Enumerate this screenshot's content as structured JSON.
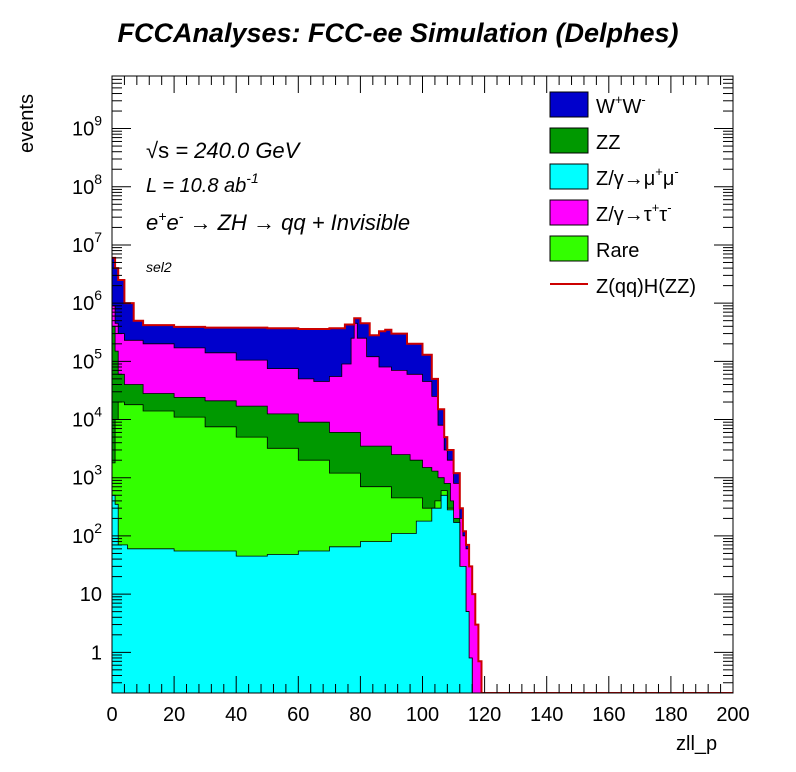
{
  "chart_data": {
    "type": "area",
    "title": "FCCAnalyses: FCC-ee Simulation (Delphes)",
    "xlabel": "zll_p",
    "ylabel": "events",
    "xlim": [
      0,
      200
    ],
    "ylim": [
      0.2,
      8000000000
    ],
    "y_scale": "log",
    "stacked": true,
    "x_ticks": [
      "0",
      "20",
      "40",
      "60",
      "80",
      "100",
      "120",
      "140",
      "160",
      "180",
      "200"
    ],
    "y_ticks": [
      {
        "value": 1,
        "label": "1"
      },
      {
        "value": 10,
        "label": "10"
      },
      {
        "value": 100,
        "label": "10^2"
      },
      {
        "value": 1000,
        "label": "10^3"
      },
      {
        "value": 10000,
        "label": "10^4"
      },
      {
        "value": 100000,
        "label": "10^5"
      },
      {
        "value": 1000000,
        "label": "10^6"
      },
      {
        "value": 10000000,
        "label": "10^7"
      },
      {
        "value": 100000000,
        "label": "10^8"
      },
      {
        "value": 1000000000,
        "label": "10^9"
      }
    ],
    "annotations": {
      "energy_sym": "√s",
      "energy_value": " = 240.0 GeV",
      "lumi_prefix": "L = 10.8 ab",
      "lumi_exp": "-1",
      "process_e1": "e",
      "process_sup1": "+",
      "process_e2": "e",
      "process_sup2": "-",
      "process_rest": " → ZH → qq + Invisible",
      "selection": "sel2"
    },
    "stack_order_bottom_to_top": [
      "Z/γ→μ⁺μ⁻",
      "Rare",
      "ZZ",
      "Z/γ→τ⁺τ⁻",
      "W⁺W⁻"
    ],
    "cumulative_stack": [
      {
        "name": "Z/γ→μ⁺μ⁻",
        "color": "#00ffff",
        "points": [
          [
            0,
            500
          ],
          [
            1,
            350
          ],
          [
            2,
            70
          ],
          [
            5,
            60
          ],
          [
            10,
            60
          ],
          [
            20,
            55
          ],
          [
            30,
            55
          ],
          [
            40,
            45
          ],
          [
            50,
            48
          ],
          [
            60,
            55
          ],
          [
            70,
            65
          ],
          [
            80,
            80
          ],
          [
            90,
            110
          ],
          [
            98,
            180
          ],
          [
            103,
            300
          ],
          [
            106,
            500
          ],
          [
            108,
            280
          ],
          [
            110,
            170
          ],
          [
            112,
            30
          ],
          [
            114,
            5
          ],
          [
            115,
            0.8
          ],
          [
            116,
            0.2
          ]
        ]
      },
      {
        "name": "Rare",
        "color": "#33ff00",
        "points": [
          [
            0,
            1800
          ],
          [
            1,
            10000
          ],
          [
            2,
            20000
          ],
          [
            4,
            18000
          ],
          [
            10,
            14000
          ],
          [
            20,
            11000
          ],
          [
            30,
            7500
          ],
          [
            40,
            5000
          ],
          [
            50,
            3200
          ],
          [
            60,
            2000
          ],
          [
            70,
            1200
          ],
          [
            80,
            700
          ],
          [
            90,
            450
          ],
          [
            100,
            300
          ],
          [
            104,
            400
          ],
          [
            106,
            600
          ],
          [
            108,
            300
          ],
          [
            110,
            170
          ],
          [
            112,
            30
          ],
          [
            114,
            5
          ],
          [
            115,
            0.8
          ],
          [
            116,
            0.2
          ]
        ]
      },
      {
        "name": "ZZ",
        "color": "#009900",
        "points": [
          [
            0,
            400000
          ],
          [
            1,
            150000
          ],
          [
            2,
            60000
          ],
          [
            4,
            40000
          ],
          [
            10,
            28000
          ],
          [
            20,
            24000
          ],
          [
            30,
            21000
          ],
          [
            40,
            17000
          ],
          [
            50,
            12500
          ],
          [
            60,
            9000
          ],
          [
            70,
            6000
          ],
          [
            80,
            3500
          ],
          [
            90,
            2500
          ],
          [
            96,
            2000
          ],
          [
            100,
            1500
          ],
          [
            103,
            1300
          ],
          [
            105,
            1000
          ],
          [
            107,
            800
          ],
          [
            109,
            400
          ],
          [
            110,
            200
          ],
          [
            112,
            30
          ],
          [
            114,
            5
          ],
          [
            115,
            0.8
          ],
          [
            116,
            0.2
          ]
        ]
      },
      {
        "name": "Z/γ→τ⁺τ⁻",
        "color": "#ff00ff",
        "points": [
          [
            0,
            900000
          ],
          [
            1,
            450000
          ],
          [
            2,
            300000
          ],
          [
            4,
            230000
          ],
          [
            10,
            200000
          ],
          [
            20,
            170000
          ],
          [
            30,
            140000
          ],
          [
            40,
            105000
          ],
          [
            50,
            75000
          ],
          [
            60,
            50000
          ],
          [
            65,
            45000
          ],
          [
            70,
            55000
          ],
          [
            74,
            90000
          ],
          [
            77,
            250000
          ],
          [
            78,
            450000
          ],
          [
            79,
            250000
          ],
          [
            82,
            120000
          ],
          [
            86,
            80000
          ],
          [
            90,
            70000
          ],
          [
            95,
            60000
          ],
          [
            100,
            45000
          ],
          [
            103,
            25000
          ],
          [
            105,
            8000
          ],
          [
            107,
            3000
          ],
          [
            108,
            2000
          ],
          [
            110,
            800
          ],
          [
            112,
            200
          ],
          [
            113,
            100
          ],
          [
            114,
            60
          ],
          [
            115,
            30
          ],
          [
            116,
            10
          ],
          [
            117,
            3
          ],
          [
            118,
            0.7
          ],
          [
            119,
            0.2
          ]
        ]
      },
      {
        "name": "W⁺W⁻",
        "color": "#0000cc",
        "points": [
          [
            0,
            6000000
          ],
          [
            1,
            4000000
          ],
          [
            2,
            2500000
          ],
          [
            4,
            1000000
          ],
          [
            7,
            500000
          ],
          [
            10,
            420000
          ],
          [
            20,
            390000
          ],
          [
            30,
            380000
          ],
          [
            40,
            380000
          ],
          [
            50,
            370000
          ],
          [
            60,
            360000
          ],
          [
            70,
            370000
          ],
          [
            75,
            430000
          ],
          [
            78,
            550000
          ],
          [
            80,
            450000
          ],
          [
            83,
            280000
          ],
          [
            86,
            330000
          ],
          [
            88,
            350000
          ],
          [
            90,
            300000
          ],
          [
            95,
            200000
          ],
          [
            100,
            130000
          ],
          [
            103,
            50000
          ],
          [
            105,
            15000
          ],
          [
            107,
            5000
          ],
          [
            108,
            3000
          ],
          [
            110,
            1200
          ],
          [
            112,
            300
          ],
          [
            113,
            120
          ],
          [
            114,
            70
          ],
          [
            115,
            30
          ],
          [
            116,
            10
          ],
          [
            117,
            3
          ],
          [
            118,
            0.7
          ],
          [
            119,
            0.2
          ]
        ]
      }
    ],
    "signal": {
      "name": "Z(qq)H(ZZ)",
      "color": "#cc0000",
      "points": [
        [
          0,
          6000000
        ],
        [
          1,
          4000000
        ],
        [
          2,
          2500000
        ],
        [
          4,
          1000000
        ],
        [
          7,
          500000
        ],
        [
          10,
          420000
        ],
        [
          20,
          390000
        ],
        [
          30,
          380000
        ],
        [
          40,
          380000
        ],
        [
          50,
          370000
        ],
        [
          60,
          360000
        ],
        [
          70,
          370000
        ],
        [
          75,
          430000
        ],
        [
          78,
          550000
        ],
        [
          80,
          450000
        ],
        [
          83,
          280000
        ],
        [
          86,
          330000
        ],
        [
          88,
          350000
        ],
        [
          90,
          300000
        ],
        [
          95,
          200000
        ],
        [
          100,
          130000
        ],
        [
          103,
          50000
        ],
        [
          105,
          15000
        ],
        [
          107,
          5000
        ],
        [
          108,
          3000
        ],
        [
          110,
          1200
        ],
        [
          112,
          300
        ],
        [
          113,
          120
        ],
        [
          114,
          70
        ],
        [
          115,
          30
        ],
        [
          116,
          10
        ],
        [
          117,
          3
        ],
        [
          118,
          0.7
        ],
        [
          119,
          0.2
        ],
        [
          200,
          0.2
        ]
      ]
    },
    "legend": {
      "placement": "top-right",
      "entries": [
        {
          "label": "W",
          "sup1": "+",
          "label2": "W",
          "sup2": "-",
          "color": "#0000cc",
          "kind": "box"
        },
        {
          "label": "ZZ",
          "color": "#009900",
          "kind": "box"
        },
        {
          "label": "Z/γ→μ",
          "sup1": "+",
          "label2": "μ",
          "sup2": "-",
          "color": "#00ffff",
          "kind": "box"
        },
        {
          "label": "Z/γ→τ",
          "sup1": "+",
          "label2": "τ",
          "sup2": "-",
          "color": "#ff00ff",
          "kind": "box"
        },
        {
          "label": "Rare",
          "color": "#33ff00",
          "kind": "box"
        },
        {
          "label": "Z(qq)H(ZZ)",
          "color": "#cc0000",
          "kind": "line"
        }
      ]
    }
  }
}
